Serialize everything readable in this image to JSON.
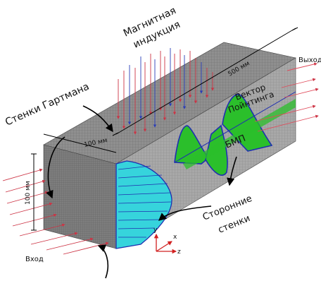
{
  "labels": {
    "magnetic_line1": "Магнитная",
    "magnetic_line2": "индукция",
    "hartmann": "Стенки Гартмана",
    "length": "500 мм",
    "width": "100 мм",
    "height": "100 мм",
    "poynting_line1": "Вектор",
    "poynting_line2": "Пойнтинга",
    "bmp": "БМП",
    "side_line1": "Сторонние",
    "side_line2": "стенки",
    "inlet": "Вход",
    "outlet": "Выход",
    "axis_y": "y",
    "axis_x": "x",
    "axis_z": "z"
  },
  "colors": {
    "mesh_top": "#8a8a8a",
    "mesh_side": "#a6a6a6",
    "mesh_front": "#7d7d7d",
    "velocity_fill": "#36d4dc",
    "wave_fill": "#2bbf2b",
    "wave_stroke": "#1f2fb0",
    "field_lines": "#cc3344",
    "poynting": "#e04a5a",
    "axis": "#d12020"
  }
}
